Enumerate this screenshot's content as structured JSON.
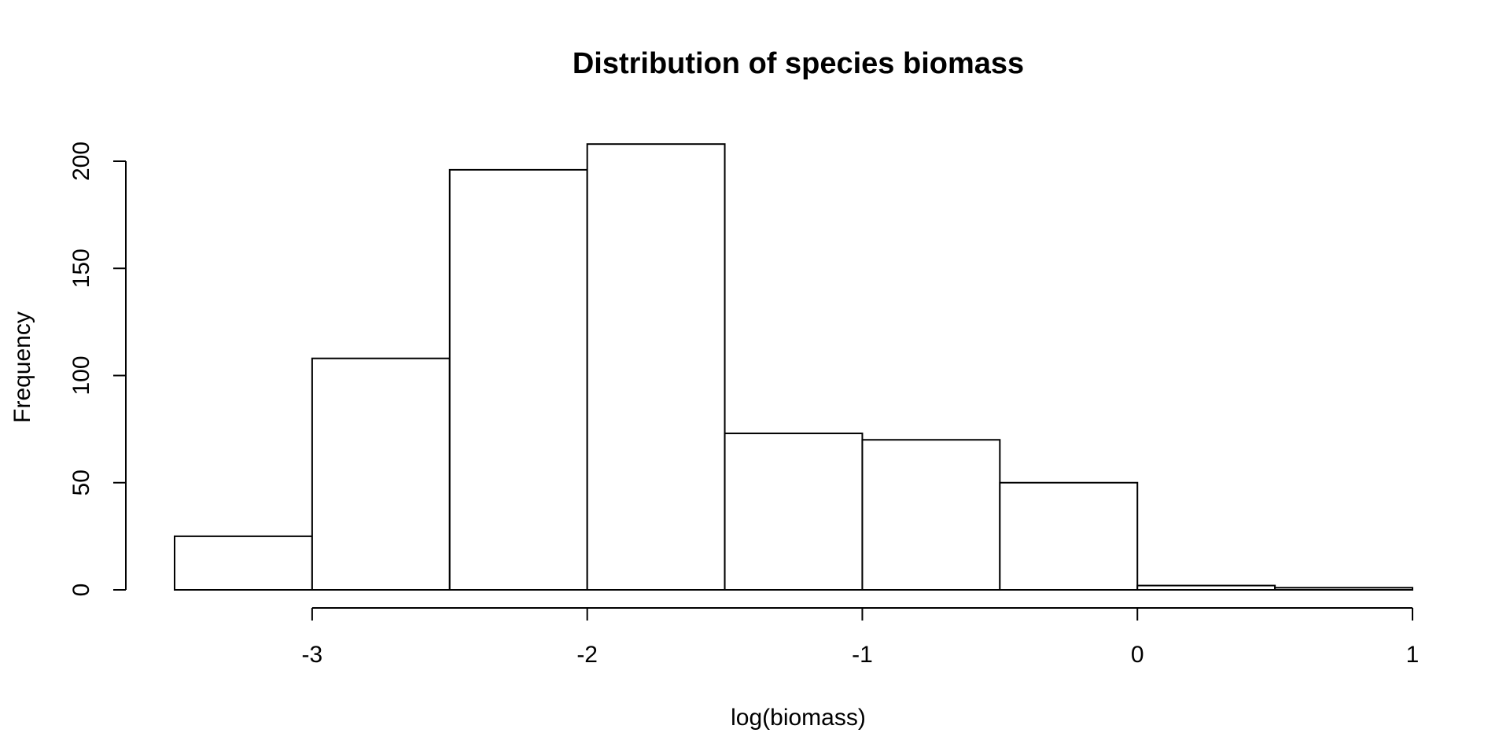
{
  "chart_data": {
    "type": "bar",
    "subtype": "histogram",
    "title": "Distribution of species biomass",
    "xlabel": "log(biomass)",
    "ylabel": "Frequency",
    "bins": [
      {
        "x0": -3.5,
        "x1": -3.0,
        "count": 25
      },
      {
        "x0": -3.0,
        "x1": -2.5,
        "count": 108
      },
      {
        "x0": -2.5,
        "x1": -2.0,
        "count": 196
      },
      {
        "x0": -2.0,
        "x1": -1.5,
        "count": 208
      },
      {
        "x0": -1.5,
        "x1": -1.0,
        "count": 73
      },
      {
        "x0": -1.0,
        "x1": -0.5,
        "count": 70
      },
      {
        "x0": -0.5,
        "x1": 0.0,
        "count": 50
      },
      {
        "x0": 0.0,
        "x1": 0.5,
        "count": 2
      },
      {
        "x0": 0.5,
        "x1": 1.0,
        "count": 1
      }
    ],
    "xlim": [
      -3.5,
      1.0
    ],
    "ylim": [
      0,
      210
    ],
    "x_axis_range": [
      -3,
      1
    ],
    "xticks": [
      -3,
      -2,
      -1,
      0,
      1
    ],
    "xtick_labels": [
      "-3",
      "-2",
      "-1",
      "0",
      "1"
    ],
    "yticks": [
      0,
      50,
      100,
      150,
      200
    ],
    "ytick_labels": [
      "0",
      "50",
      "100",
      "150",
      "200"
    ],
    "grid": false,
    "legend": "none",
    "colors": {
      "bar_fill": "#ffffff",
      "bar_stroke": "#000000",
      "axis": "#000000",
      "background": "#ffffff"
    }
  }
}
